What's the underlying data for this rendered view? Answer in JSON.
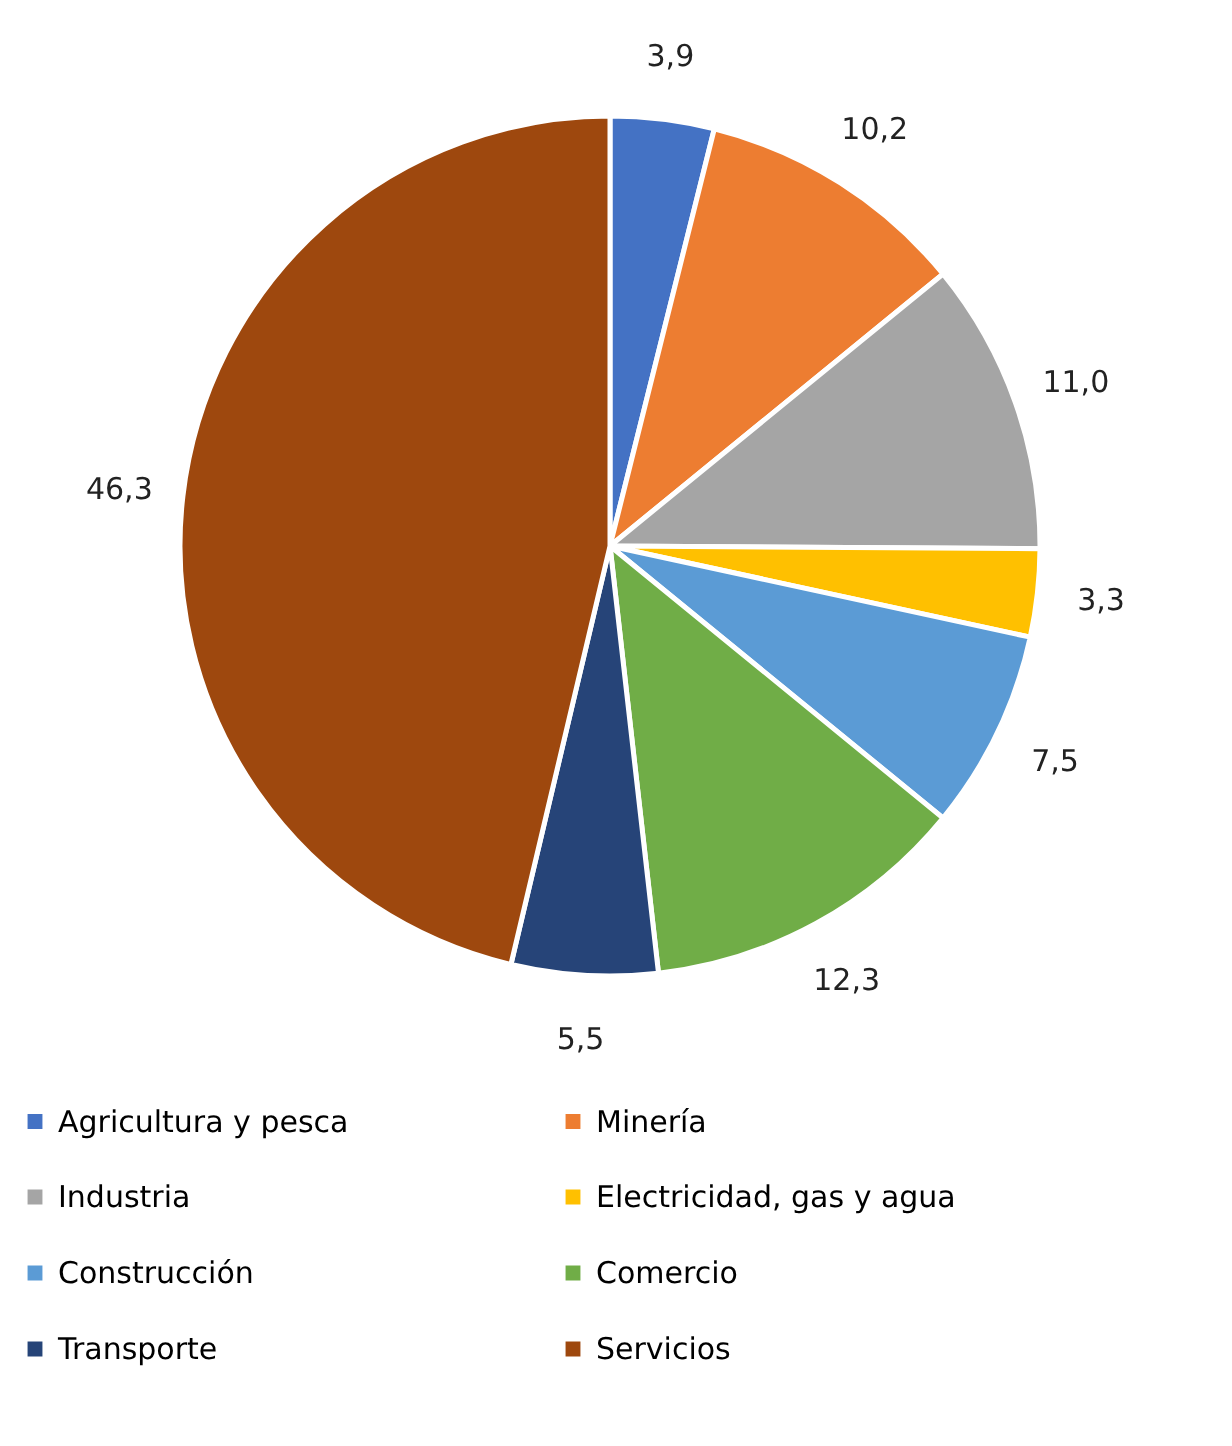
{
  "chart_data": {
    "type": "pie",
    "categories": [
      "Agricultura y pesca",
      "Minería",
      "Industria",
      "Electricidad, gas y agua",
      "Construcción",
      "Comercio",
      "Transporte",
      "Servicios"
    ],
    "values": [
      3.9,
      10.2,
      11.0,
      3.3,
      7.5,
      12.3,
      5.5,
      46.3
    ],
    "value_labels": [
      "3,9",
      "10,2",
      "11,0",
      "3,3",
      "7,5",
      "12,3",
      "5,5",
      "46,3"
    ],
    "colors": [
      "#4472c4",
      "#ed7d31",
      "#a5a5a5",
      "#ffc000",
      "#5b9bd5",
      "#70ad47",
      "#264478",
      "#9e480e"
    ],
    "legend": "bottom"
  }
}
